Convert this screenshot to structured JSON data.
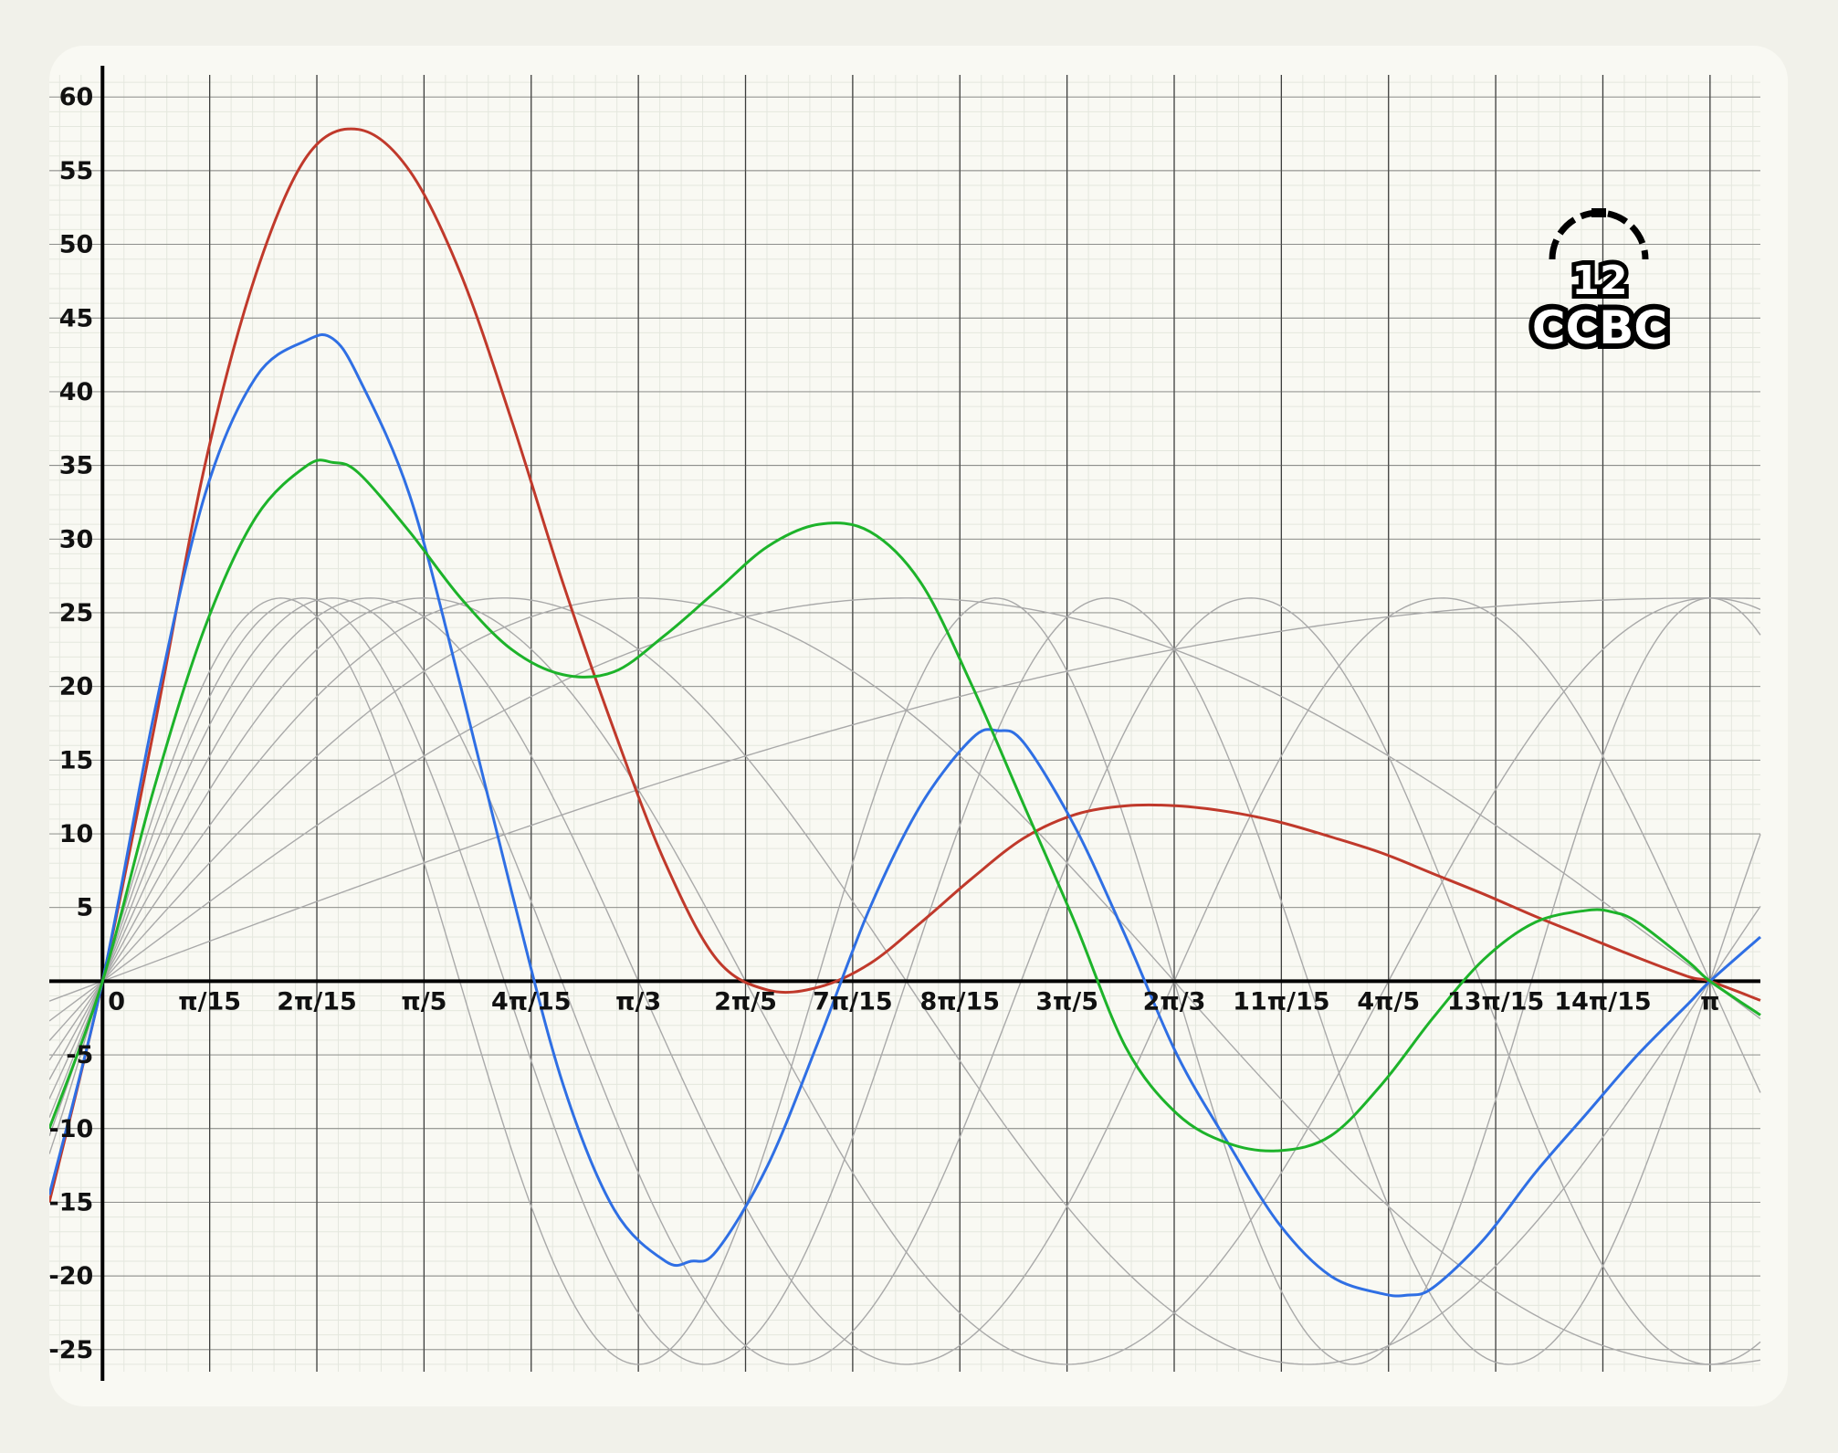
{
  "logo": {
    "top": "12",
    "bottom": "CCBC"
  },
  "colors": {
    "background": "#f1f1ea",
    "card": "#f9f9f3",
    "minor_grid": "#e4e7de",
    "major_grid": "#1e1e1e",
    "axis": "#000000",
    "component": "#a9a9a9",
    "red": "#c0392b",
    "blue": "#2f6fe4",
    "green": "#1db32a"
  },
  "chart_data": {
    "type": "line",
    "title": "",
    "xlabel": "",
    "ylabel": "",
    "xlim": [
      -0.104,
      3.24
    ],
    "ylim": [
      -26.5,
      61.5
    ],
    "grid": true,
    "legend": "none",
    "x_ticks": [
      {
        "value": 0,
        "label": "0"
      },
      {
        "value": 0.20944,
        "label": "π/15"
      },
      {
        "value": 0.41888,
        "label": "2π/15"
      },
      {
        "value": 0.62832,
        "label": "π/5"
      },
      {
        "value": 0.83776,
        "label": "4π/15"
      },
      {
        "value": 1.0472,
        "label": "π/3"
      },
      {
        "value": 1.25664,
        "label": "2π/5"
      },
      {
        "value": 1.46608,
        "label": "7π/15"
      },
      {
        "value": 1.67552,
        "label": "8π/15"
      },
      {
        "value": 1.88496,
        "label": "3π/5"
      },
      {
        "value": 2.0944,
        "label": "2π/3"
      },
      {
        "value": 2.30383,
        "label": "11π/15"
      },
      {
        "value": 2.51327,
        "label": "4π/5"
      },
      {
        "value": 2.72271,
        "label": "13π/15"
      },
      {
        "value": 2.93215,
        "label": "14π/15"
      },
      {
        "value": 3.14159,
        "label": "π"
      }
    ],
    "y_ticks": [
      {
        "value": 60,
        "label": "60"
      },
      {
        "value": 55,
        "label": "55"
      },
      {
        "value": 50,
        "label": "50"
      },
      {
        "value": 45,
        "label": "45"
      },
      {
        "value": 40,
        "label": "40"
      },
      {
        "value": 35,
        "label": "35"
      },
      {
        "value": 30,
        "label": "30"
      },
      {
        "value": 25,
        "label": "25"
      },
      {
        "value": 20,
        "label": "20"
      },
      {
        "value": 15,
        "label": "15"
      },
      {
        "value": 10,
        "label": "10"
      },
      {
        "value": 5,
        "label": "5"
      },
      {
        "value": -5,
        "label": "-5"
      },
      {
        "value": -10,
        "label": "-10"
      },
      {
        "value": -15,
        "label": "-15"
      },
      {
        "value": -20,
        "label": "-20"
      },
      {
        "value": -25,
        "label": "-25"
      }
    ],
    "component_curves": {
      "amplitude": 26,
      "frequencies": [
        0.5,
        1,
        1.5,
        2,
        2.5,
        3,
        3.5,
        4,
        4.5
      ]
    },
    "series": [
      {
        "color": "#c0392b",
        "x": [
          -0.104,
          0,
          0.1,
          0.2,
          0.3,
          0.4,
          0.5,
          0.6,
          0.7,
          0.8,
          0.9,
          1.0,
          1.1,
          1.2,
          1.3,
          1.4,
          1.5,
          1.6,
          1.7,
          1.8,
          1.9,
          2.0,
          2.1,
          2.2,
          2.3,
          2.4,
          2.5,
          2.6,
          2.7,
          2.8,
          2.9,
          3.0,
          3.1,
          3.14159,
          3.24
        ],
        "y": [
          -15,
          0,
          17,
          35,
          48,
          56,
          57.8,
          55,
          48,
          38,
          27,
          17,
          8,
          1.5,
          -0.6,
          -0.4,
          1.2,
          4,
          7,
          9.7,
          11.3,
          11.9,
          11.9,
          11.5,
          10.8,
          9.8,
          8.7,
          7.3,
          5.9,
          4.4,
          3,
          1.6,
          0.3,
          0,
          -1.3
        ]
      },
      {
        "color": "#2f6fe4",
        "x": [
          -0.104,
          0,
          0.1,
          0.2,
          0.3,
          0.4,
          0.45,
          0.5,
          0.6,
          0.7,
          0.8,
          0.9,
          1.0,
          1.1,
          1.15,
          1.2,
          1.3,
          1.4,
          1.5,
          1.6,
          1.7,
          1.75,
          1.8,
          1.9,
          2.0,
          2.1,
          2.2,
          2.3,
          2.4,
          2.5,
          2.55,
          2.6,
          2.7,
          2.8,
          2.9,
          3.0,
          3.1,
          3.14159,
          3.24
        ],
        "y": [
          -14.5,
          0,
          18,
          33,
          41,
          43.5,
          43.6,
          41,
          33,
          20,
          6,
          -7,
          -15.5,
          -19,
          -19,
          -18.3,
          -12.5,
          -4,
          5,
          12,
          16.5,
          17,
          16.2,
          10.5,
          3,
          -5,
          -11,
          -16.5,
          -20,
          -21.2,
          -21.3,
          -20.8,
          -17.5,
          -13,
          -9,
          -5,
          -1.5,
          0,
          3
        ]
      },
      {
        "color": "#1db32a",
        "x": [
          -0.104,
          0,
          0.1,
          0.2,
          0.3,
          0.4,
          0.45,
          0.5,
          0.6,
          0.7,
          0.8,
          0.9,
          1.0,
          1.1,
          1.2,
          1.3,
          1.4,
          1.5,
          1.6,
          1.7,
          1.8,
          1.9,
          2.0,
          2.1,
          2.2,
          2.3,
          2.4,
          2.5,
          2.6,
          2.7,
          2.8,
          2.9,
          2.95,
          3.0,
          3.1,
          3.14159,
          3.24
        ],
        "y": [
          -10,
          0,
          13,
          24,
          31.5,
          35,
          35.2,
          34.5,
          30.5,
          26,
          22.5,
          20.8,
          21,
          23.5,
          26.5,
          29.5,
          31,
          30.5,
          27,
          20,
          12,
          4,
          -4.5,
          -9,
          -11,
          -11.5,
          -10.5,
          -7,
          -2.5,
          1.5,
          4,
          4.8,
          4.7,
          4,
          1.3,
          0,
          -2.3
        ]
      }
    ]
  }
}
